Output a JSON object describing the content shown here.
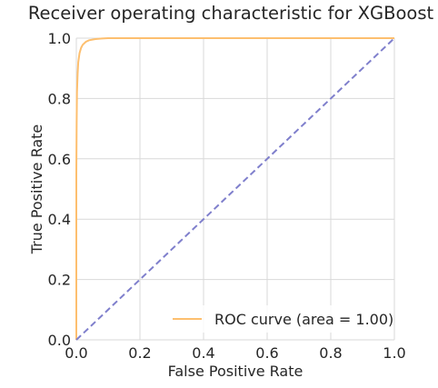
{
  "chart_data": {
    "type": "line",
    "title": "Receiver operating characteristic for XGBoost",
    "xlabel": "False Positive Rate",
    "ylabel": "True Positive Rate",
    "xlim": [
      0.0,
      1.0
    ],
    "ylim": [
      0.0,
      1.0
    ],
    "xticks": [
      "0.0",
      "0.2",
      "0.4",
      "0.6",
      "0.8",
      "1.0"
    ],
    "yticks": [
      "0.0",
      "0.2",
      "0.4",
      "0.6",
      "0.8",
      "1.0"
    ],
    "grid": true,
    "legend_position": "lower-right",
    "series": [
      {
        "name": "ROC curve (area = 1.00)",
        "color": "#fdbf6f",
        "style": "solid",
        "x": [
          0.0,
          0.0,
          0.001,
          0.002,
          0.004,
          0.006,
          0.01,
          0.015,
          0.02,
          0.03,
          0.04,
          0.06,
          0.08,
          0.1,
          0.15,
          0.2,
          0.4,
          0.6,
          0.8,
          1.0
        ],
        "y": [
          0.0,
          0.55,
          0.72,
          0.82,
          0.88,
          0.92,
          0.95,
          0.968,
          0.978,
          0.988,
          0.993,
          0.997,
          0.999,
          1.0,
          1.0,
          1.0,
          1.0,
          1.0,
          1.0,
          1.0
        ]
      },
      {
        "name": "",
        "color": "#7f7fcc",
        "style": "dashed",
        "x": [
          0.0,
          1.0
        ],
        "y": [
          0.0,
          1.0
        ]
      }
    ]
  }
}
